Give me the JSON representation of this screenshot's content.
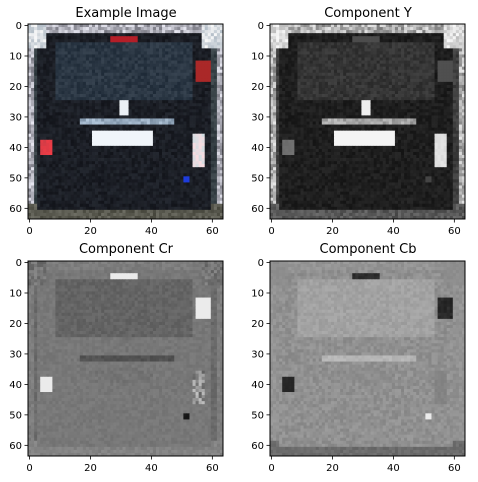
{
  "figure": {
    "panels": [
      {
        "title": "Example Image",
        "kind": "color",
        "xticks": [
          "0",
          "20",
          "40",
          "60"
        ],
        "yticks": [
          "0",
          "10",
          "20",
          "30",
          "40",
          "50",
          "60"
        ]
      },
      {
        "title": "Component Y",
        "kind": "luma",
        "xticks": [
          "0",
          "20",
          "40",
          "60"
        ],
        "yticks": [
          "0",
          "10",
          "20",
          "30",
          "40",
          "50",
          "60"
        ]
      },
      {
        "title": "Component Cr",
        "kind": "chroma_cr",
        "xticks": [
          "0",
          "20",
          "40",
          "60"
        ],
        "yticks": [
          "0",
          "10",
          "20",
          "30",
          "40",
          "50",
          "60"
        ]
      },
      {
        "title": "Component Cb",
        "kind": "chroma_cb",
        "xticks": [
          "0",
          "20",
          "40",
          "60"
        ],
        "yticks": [
          "0",
          "10",
          "20",
          "30",
          "40",
          "50",
          "60"
        ]
      }
    ]
  }
}
